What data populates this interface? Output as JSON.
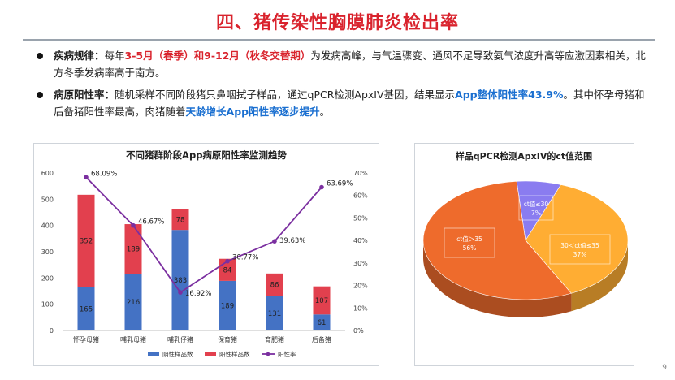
{
  "title": "四、猪传染性胸膜肺炎检出率",
  "bullets": {
    "b1": {
      "label": "疾病规律",
      "colon": "：",
      "t1": "每年",
      "h1": "3-5月（春季）和9-12月（秋冬交替期）",
      "t2": "为发病高峰，与气温骤变、通风不足导致氨气浓度升高等应激因素相关，北方冬季发病率高于南方。"
    },
    "b2": {
      "label": "病原阳性率",
      "colon": "：",
      "t1": "随机采样不同阶段猪只鼻咽拭子样品，通过qPCR检测ApxIV基因，结果显示",
      "h1": "App整体阳性率43.9%",
      "t2": "。其中怀孕母猪和后备猪阳性率最高，肉猪随着",
      "h2": "天龄增长App阳性率逐步提升",
      "t3": "。"
    }
  },
  "page_number": "9",
  "colors": {
    "blue": "#4472c4",
    "red": "#e2404e",
    "line": "#7b2fa0"
  },
  "chart_data": [
    {
      "type": "bar",
      "stacked": true,
      "title": "不同猪群阶段App病原阳性率监测趋势",
      "categories": [
        "怀孕母猪",
        "哺乳母猪",
        "哺乳仔猪",
        "保育猪",
        "育肥猪",
        "后备猪"
      ],
      "series": [
        {
          "name": "阴性样品数",
          "values": [
            165,
            216,
            383,
            189,
            131,
            61
          ],
          "labels": [
            "165",
            "216",
            "383",
            "189",
            "131",
            "61"
          ]
        },
        {
          "name": "阳性样品数",
          "values": [
            352,
            189,
            78,
            84,
            86,
            107
          ],
          "labels": [
            "352",
            "189",
            "78",
            "84",
            "86",
            "107"
          ]
        },
        {
          "name": "阳性率",
          "type": "line",
          "axis": "right",
          "values": [
            68.09,
            46.67,
            16.92,
            30.77,
            39.63,
            63.69
          ],
          "labels": [
            "68.09%",
            "46.67%",
            "16.92%",
            "30.77%",
            "39.63%",
            "63.69%"
          ]
        }
      ],
      "ylim": [
        0,
        600
      ],
      "y_ticks": [
        "0",
        "100",
        "200",
        "300",
        "400",
        "500",
        "600"
      ],
      "y2lim": [
        0,
        70
      ],
      "y2_ticks": [
        "0%",
        "10%",
        "20%",
        "30%",
        "40%",
        "50%",
        "60%",
        "70%"
      ],
      "legend": [
        "阴性样品数",
        "阳性样品数",
        "阳性率"
      ],
      "legend_position": "bottom"
    },
    {
      "type": "pie",
      "title": "样品qPCR检测ApxIV的ct值范围",
      "slices": [
        {
          "label": "ct值＞35",
          "value": 56,
          "pct": "56%",
          "color": "#ee6b2c"
        },
        {
          "label": "30＜ct值≤35",
          "value": 37,
          "pct": "37%",
          "color": "#ffad33"
        },
        {
          "label": "ct值≤30",
          "value": 7,
          "pct": "7%",
          "color": "#8a7cf0"
        }
      ]
    }
  ]
}
